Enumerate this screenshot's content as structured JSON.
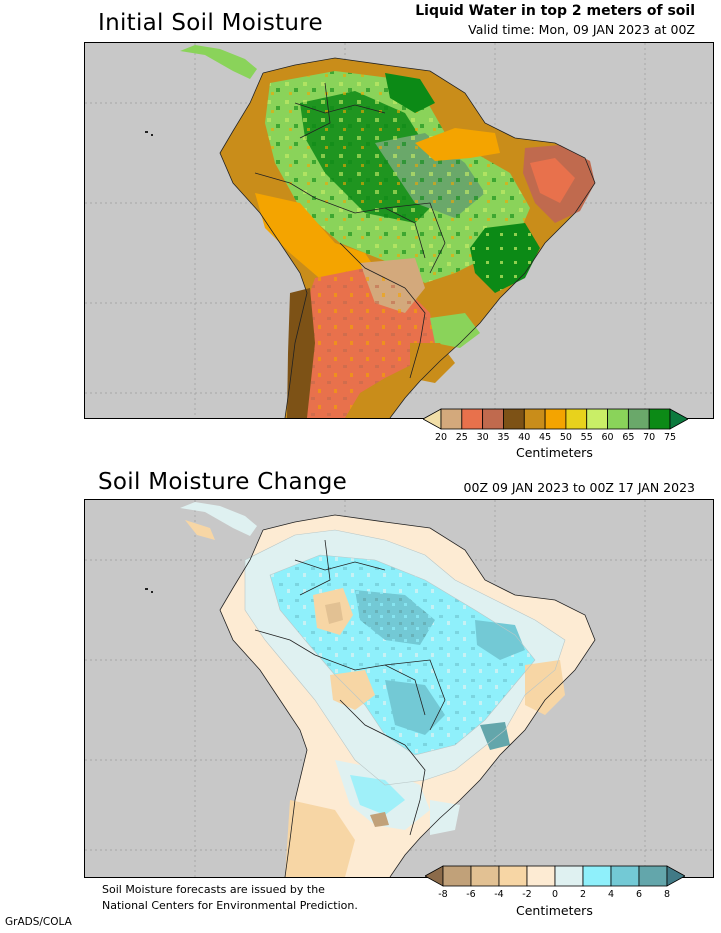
{
  "panel1": {
    "title": "Initial Soil Moisture",
    "subtitle": "Liquid Water in top 2 meters of soil",
    "valid_time": "Valid time: Mon, 09 JAN 2023 at 00Z",
    "colorbar": {
      "labels": [
        "20",
        "25",
        "30",
        "35",
        "40",
        "45",
        "50",
        "55",
        "60",
        "65",
        "70",
        "75"
      ],
      "colors": [
        "#f2dfa8",
        "#d3a97c",
        "#e8714c",
        "#c06a4e",
        "#7d5216",
        "#c98d1a",
        "#f4a400",
        "#e8d21c",
        "#c9ee67",
        "#8ad35a",
        "#6aa86a",
        "#0c8a16",
        "#0c7a3e"
      ],
      "units": "Centimeters"
    }
  },
  "panel2": {
    "title": "Soil Moisture Change",
    "period": "00Z 09 JAN 2023 to 00Z 17 JAN 2023",
    "colorbar": {
      "labels": [
        "-8",
        "-6",
        "-4",
        "-2",
        "0",
        "2",
        "4",
        "6",
        "8"
      ],
      "colors": [
        "#8c6b4a",
        "#c1a179",
        "#e2c193",
        "#f7d6a5",
        "#fdebd3",
        "#dff1f1",
        "#8ff0fb",
        "#73c9d5",
        "#63a6ab",
        "#417a86"
      ],
      "units": "Centimeters"
    }
  },
  "footnote": {
    "line1": "Soil Moisture forecasts are issued by the",
    "line2": "National Centers for Environmental Prediction."
  },
  "credit": "GrADS/COLA"
}
